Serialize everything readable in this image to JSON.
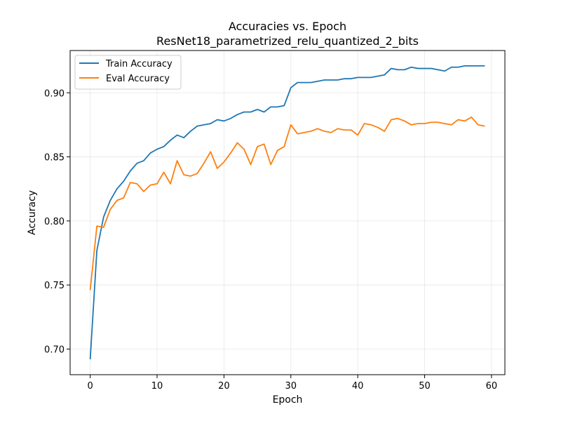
{
  "chart_data": {
    "type": "line",
    "title": "Accuracies vs. Epoch",
    "subtitle": "ResNet18_parametrized_relu_quantized_2_bits",
    "xlabel": "Epoch",
    "ylabel": "Accuracy",
    "xlim": [
      -3,
      62
    ],
    "ylim": [
      0.68,
      0.933
    ],
    "xticks": [
      0,
      10,
      20,
      30,
      40,
      50,
      60
    ],
    "yticks": [
      0.7,
      0.75,
      0.8,
      0.85,
      0.9
    ],
    "xtick_labels": [
      "0",
      "10",
      "20",
      "30",
      "40",
      "50",
      "60"
    ],
    "ytick_labels": [
      "0.70",
      "0.75",
      "0.80",
      "0.85",
      "0.90"
    ],
    "grid": true,
    "legend_position": "top-left",
    "x": [
      0,
      1,
      2,
      3,
      4,
      5,
      6,
      7,
      8,
      9,
      10,
      11,
      12,
      13,
      14,
      15,
      16,
      17,
      18,
      19,
      20,
      21,
      22,
      23,
      24,
      25,
      26,
      27,
      28,
      29,
      30,
      31,
      32,
      33,
      34,
      35,
      36,
      37,
      38,
      39,
      40,
      41,
      42,
      43,
      44,
      45,
      46,
      47,
      48,
      49,
      50,
      51,
      52,
      53,
      54,
      55,
      56,
      57,
      58,
      59
    ],
    "series": [
      {
        "name": "Train Accuracy",
        "color": "#1f77b4",
        "values": [
          0.692,
          0.777,
          0.803,
          0.816,
          0.825,
          0.831,
          0.839,
          0.845,
          0.847,
          0.853,
          0.856,
          0.858,
          0.863,
          0.867,
          0.865,
          0.87,
          0.874,
          0.875,
          0.876,
          0.879,
          0.878,
          0.88,
          0.883,
          0.885,
          0.885,
          0.887,
          0.885,
          0.889,
          0.889,
          0.89,
          0.904,
          0.908,
          0.908,
          0.908,
          0.909,
          0.91,
          0.91,
          0.91,
          0.911,
          0.911,
          0.912,
          0.912,
          0.912,
          0.913,
          0.914,
          0.919,
          0.918,
          0.918,
          0.92,
          0.919,
          0.919,
          0.919,
          0.918,
          0.917,
          0.92,
          0.92,
          0.921,
          0.921,
          0.921,
          0.921
        ]
      },
      {
        "name": "Eval Accuracy",
        "color": "#ff7f0e",
        "values": [
          0.746,
          0.796,
          0.795,
          0.809,
          0.816,
          0.818,
          0.83,
          0.829,
          0.823,
          0.828,
          0.829,
          0.838,
          0.829,
          0.847,
          0.836,
          0.835,
          0.837,
          0.845,
          0.854,
          0.841,
          0.846,
          0.853,
          0.861,
          0.856,
          0.844,
          0.858,
          0.86,
          0.844,
          0.855,
          0.858,
          0.875,
          0.868,
          0.869,
          0.87,
          0.872,
          0.87,
          0.869,
          0.872,
          0.871,
          0.871,
          0.867,
          0.876,
          0.875,
          0.873,
          0.87,
          0.879,
          0.88,
          0.878,
          0.875,
          0.876,
          0.876,
          0.877,
          0.877,
          0.876,
          0.875,
          0.879,
          0.878,
          0.881,
          0.875,
          0.874
        ]
      }
    ]
  }
}
